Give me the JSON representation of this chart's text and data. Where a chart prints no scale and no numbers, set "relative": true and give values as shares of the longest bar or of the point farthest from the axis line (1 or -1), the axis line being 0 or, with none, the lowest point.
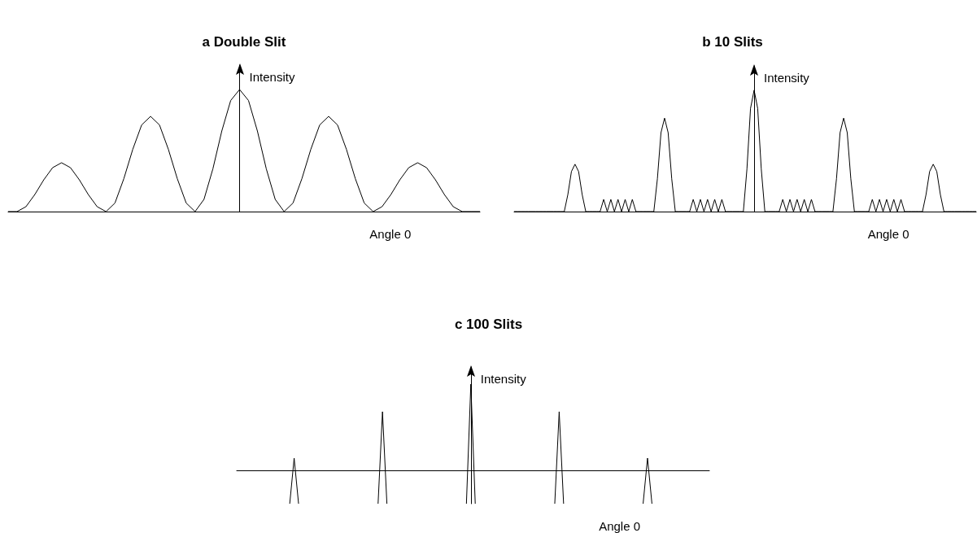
{
  "chart_data": [
    {
      "type": "line",
      "title": "a Double Slit",
      "xlabel": "Angle 0",
      "ylabel": "Intensity",
      "relative": true,
      "color": "#000000",
      "categories": [
        null,
        null,
        null,
        null,
        null,
        null,
        null,
        null,
        null,
        null,
        null,
        null,
        null,
        null,
        null,
        null,
        null,
        null,
        null,
        null,
        null,
        null,
        null,
        null,
        null,
        null,
        null,
        null,
        null,
        null,
        null,
        null,
        null,
        null,
        null,
        null,
        null,
        null,
        null,
        null,
        null,
        null,
        null,
        null,
        null,
        null,
        null,
        null,
        null,
        null,
        null,
        null,
        null,
        null
      ],
      "values": [
        0,
        0,
        0.04,
        0.14,
        0.26,
        0.36,
        0.4,
        0.36,
        0.26,
        0.14,
        0.04,
        0,
        0.07,
        0.27,
        0.51,
        0.71,
        0.78,
        0.71,
        0.51,
        0.27,
        0.07,
        0,
        0.1,
        0.35,
        0.66,
        0.91,
        1,
        0.91,
        0.66,
        0.35,
        0.1,
        0,
        0.07,
        0.27,
        0.51,
        0.71,
        0.78,
        0.71,
        0.51,
        0.27,
        0.07,
        0,
        0.04,
        0.14,
        0.26,
        0.36,
        0.4,
        0.36,
        0.26,
        0.14,
        0.04,
        0,
        0,
        0
      ]
    },
    {
      "type": "line",
      "title": "b 10 Slits",
      "xlabel": "Angle 0",
      "ylabel": "Intensity",
      "relative": true,
      "color": "#000000",
      "categories": [
        null,
        null,
        null,
        null,
        null,
        null,
        null,
        null,
        null,
        null,
        null,
        null,
        null,
        null,
        null,
        null,
        null,
        null,
        null,
        null,
        null,
        null,
        null,
        null,
        null,
        null,
        null,
        null,
        null,
        null,
        null,
        null,
        null,
        null,
        null,
        null,
        null,
        null,
        null,
        null,
        null,
        null,
        null,
        null,
        null,
        null,
        null,
        null,
        null,
        null,
        null,
        null,
        null,
        null,
        null,
        null,
        null,
        null,
        null,
        null,
        null,
        null,
        null,
        null,
        null,
        null,
        null,
        null,
        null,
        null,
        null,
        null,
        null,
        null,
        null,
        null,
        null,
        null,
        null,
        null,
        null,
        null,
        null,
        null,
        null,
        null,
        null,
        null,
        null,
        null,
        null,
        null,
        null,
        null,
        null,
        null,
        null,
        null,
        null,
        null,
        null,
        null,
        null,
        null,
        null,
        null,
        null,
        null,
        null,
        null,
        null,
        null,
        null,
        null,
        null,
        null,
        null,
        null,
        null,
        null,
        null,
        null,
        null,
        null,
        null,
        null,
        null,
        null,
        null,
        null
      ],
      "values": [
        0,
        0,
        0,
        0,
        0,
        0,
        0,
        0,
        0,
        0,
        0,
        0,
        0,
        0,
        0,
        0.14,
        0.33,
        0.39,
        0.33,
        0.14,
        0,
        0,
        0,
        0,
        0,
        0.1,
        0,
        0.1,
        0,
        0.1,
        0,
        0.1,
        0,
        0.1,
        0,
        0,
        0,
        0,
        0,
        0,
        0.27,
        0.65,
        0.77,
        0.65,
        0.27,
        0,
        0,
        0,
        0,
        0,
        0.1,
        0,
        0.1,
        0,
        0.1,
        0,
        0.1,
        0,
        0.1,
        0,
        0,
        0,
        0,
        0,
        0,
        0.35,
        0.85,
        1,
        0.85,
        0.35,
        0,
        0,
        0,
        0,
        0,
        0.1,
        0,
        0.1,
        0,
        0.1,
        0,
        0.1,
        0,
        0.1,
        0,
        0,
        0,
        0,
        0,
        0,
        0.27,
        0.65,
        0.77,
        0.65,
        0.27,
        0,
        0,
        0,
        0,
        0,
        0.1,
        0,
        0.1,
        0,
        0.1,
        0,
        0.1,
        0,
        0.1,
        0,
        0,
        0,
        0,
        0,
        0,
        0.14,
        0.33,
        0.39,
        0.33,
        0.14,
        0,
        0,
        0,
        0,
        0,
        0,
        0,
        0,
        0,
        0
      ]
    },
    {
      "type": "line",
      "title": "c 100 Slits",
      "xlabel": "Angle 0",
      "ylabel": "Intensity",
      "relative": true,
      "color": "#000000",
      "categories": [
        null,
        null,
        null,
        null,
        null,
        null,
        null,
        null,
        null,
        null,
        null,
        null,
        null,
        null,
        null,
        null,
        null,
        null,
        null,
        null,
        null,
        null,
        null,
        null,
        null,
        null,
        null,
        null,
        null,
        null,
        null,
        null,
        null,
        null,
        null,
        null,
        null,
        null,
        null,
        null,
        null,
        null,
        null,
        null,
        null,
        null,
        null,
        null,
        null,
        null,
        null,
        null,
        null,
        null,
        null,
        null,
        null,
        null,
        null,
        null,
        null,
        null,
        null,
        null,
        null,
        null,
        null,
        null,
        null,
        null,
        null,
        null,
        null,
        null,
        null,
        null,
        null,
        null,
        null,
        null,
        null,
        null,
        null,
        null,
        null,
        null,
        null,
        null,
        null,
        null,
        null,
        null,
        null,
        null,
        null,
        null,
        null,
        null,
        null,
        null,
        null,
        null,
        null,
        null,
        null,
        null,
        null,
        null
      ],
      "values": [
        0,
        null,
        null,
        null,
        null,
        null,
        null,
        null,
        null,
        null,
        null,
        null,
        -0.39,
        0.14,
        -0.39,
        null,
        null,
        null,
        null,
        null,
        null,
        null,
        null,
        null,
        null,
        null,
        null,
        null,
        null,
        null,
        null,
        null,
        -0.39,
        0.68,
        -0.39,
        null,
        null,
        null,
        null,
        null,
        null,
        null,
        null,
        null,
        null,
        null,
        null,
        null,
        null,
        null,
        null,
        null,
        -0.39,
        1,
        -0.39,
        null,
        null,
        null,
        null,
        null,
        null,
        null,
        null,
        null,
        null,
        null,
        null,
        null,
        null,
        null,
        null,
        null,
        -0.39,
        0.68,
        -0.39,
        null,
        null,
        null,
        null,
        null,
        null,
        null,
        null,
        null,
        null,
        null,
        null,
        null,
        null,
        null,
        null,
        null,
        -0.39,
        0.14,
        -0.39,
        null,
        null,
        null,
        null,
        null,
        null,
        null,
        null,
        null,
        null,
        null,
        null,
        0
      ]
    }
  ]
}
